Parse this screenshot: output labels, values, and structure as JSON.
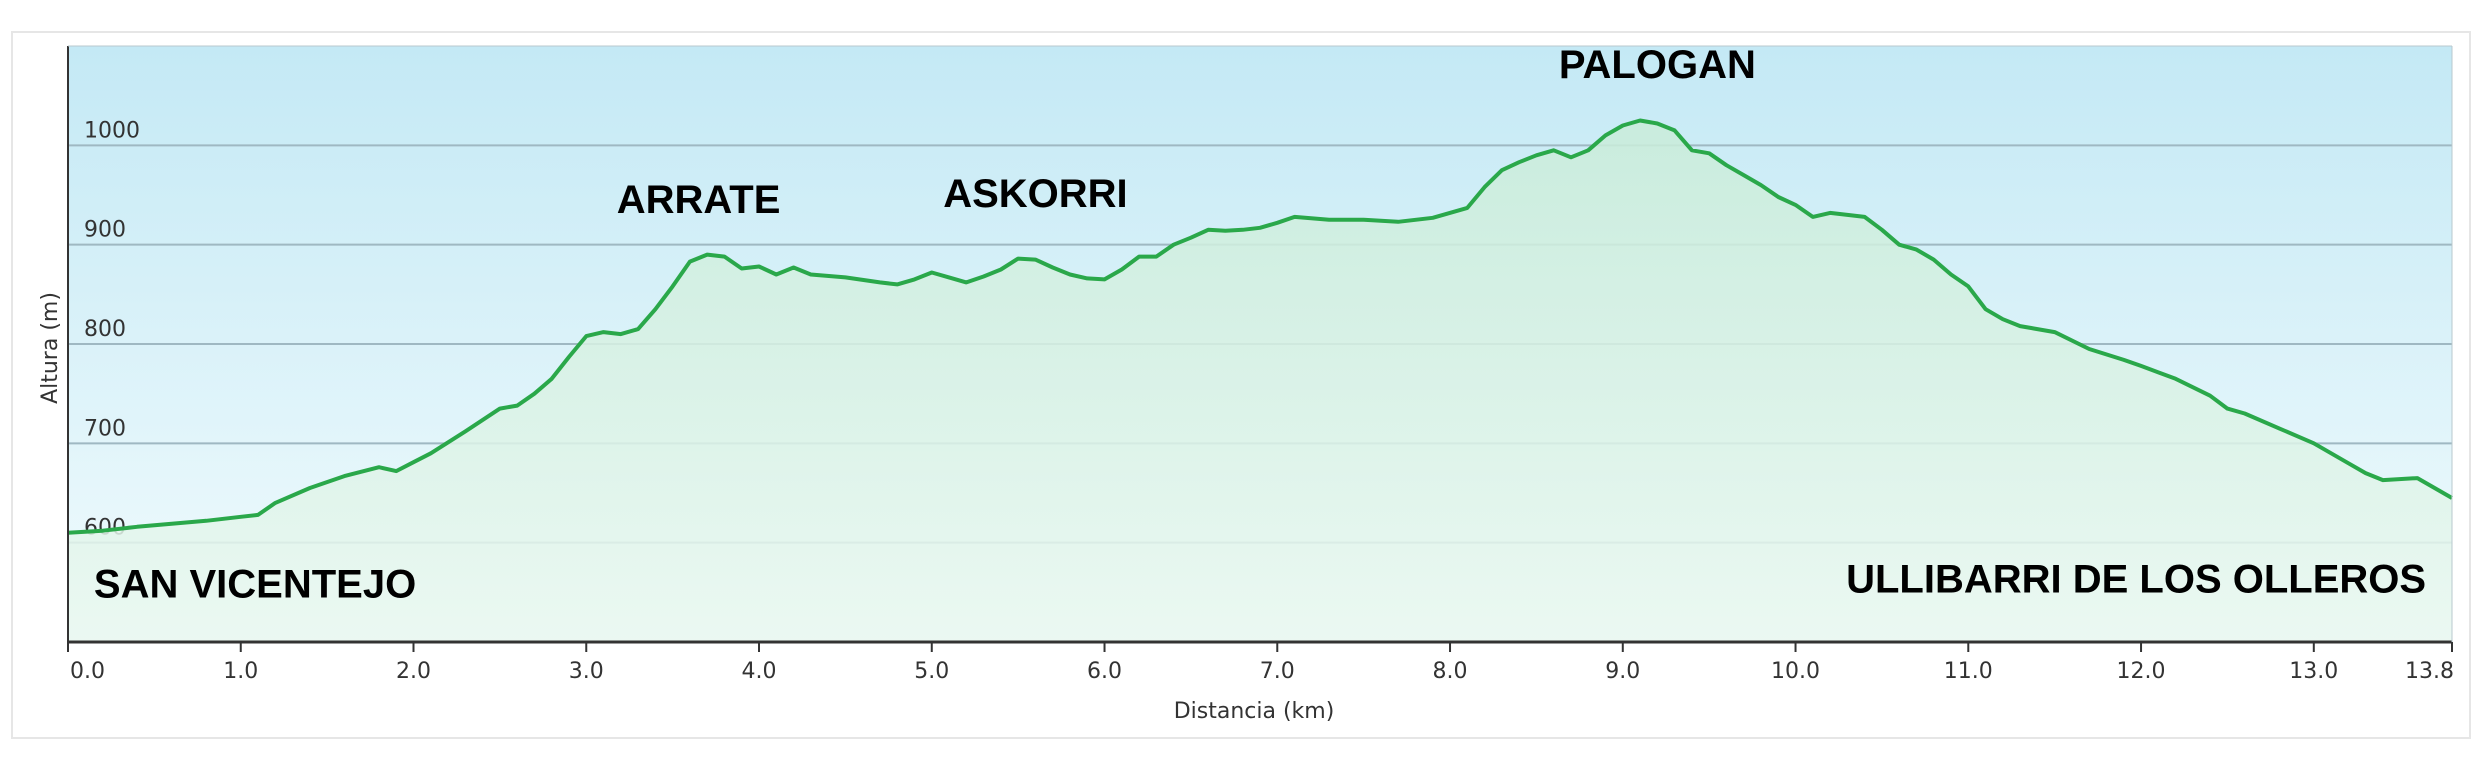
{
  "chart_data": {
    "type": "area",
    "xlabel": "Distancia  (km)",
    "ylabel": "Altura (m)",
    "xlim": [
      0,
      13.8
    ],
    "ylim": [
      500,
      1100
    ],
    "x_ticks": [
      0,
      1,
      2,
      3,
      4,
      5,
      6,
      7,
      8,
      9,
      10,
      11,
      12,
      13,
      13.8
    ],
    "x_tick_labels": [
      "0.0",
      "1.0",
      "2.0",
      "3.0",
      "4.0",
      "5.0",
      "6.0",
      "7.0",
      "8.0",
      "9.0",
      "10.0",
      "11.0",
      "12.0",
      "13.0",
      "13.8"
    ],
    "y_ticks": [
      600,
      700,
      800,
      900,
      1000
    ],
    "y_tick_labels": [
      "600",
      "700",
      "800",
      "900",
      "1000"
    ],
    "grid": true,
    "colors": {
      "line": "#2aa84a",
      "fill_top": "#c9ecd9",
      "fill_bottom": "#eaf8f0",
      "bg_top": "#c4e9f5",
      "bg_bottom": "#f1fbfd",
      "grid": "#9fb8c2",
      "axis": "#333333"
    },
    "series": [
      {
        "x": [
          0.0,
          0.2,
          0.4,
          0.6,
          0.8,
          1.0,
          1.1,
          1.2,
          1.4,
          1.6,
          1.8,
          1.9,
          2.0,
          2.1,
          2.3,
          2.5,
          2.6,
          2.7,
          2.8,
          2.9,
          3.0,
          3.1,
          3.2,
          3.3,
          3.4,
          3.5,
          3.6,
          3.7,
          3.8,
          3.9,
          4.0,
          4.1,
          4.2,
          4.3,
          4.5,
          4.7,
          4.8,
          4.9,
          5.0,
          5.1,
          5.2,
          5.3,
          5.4,
          5.5,
          5.6,
          5.7,
          5.8,
          5.9,
          6.0,
          6.1,
          6.2,
          6.3,
          6.4,
          6.5,
          6.6,
          6.7,
          6.8,
          6.9,
          7.0,
          7.1,
          7.3,
          7.5,
          7.7,
          7.9,
          8.1,
          8.2,
          8.3,
          8.4,
          8.5,
          8.6,
          8.7,
          8.8,
          8.9,
          9.0,
          9.1,
          9.2,
          9.3,
          9.4,
          9.5,
          9.6,
          9.7,
          9.8,
          9.9,
          10.0,
          10.1,
          10.2,
          10.3,
          10.4,
          10.5,
          10.6,
          10.7,
          10.8,
          10.9,
          11.0,
          11.1,
          11.2,
          11.3,
          11.5,
          11.7,
          11.9,
          12.0,
          12.2,
          12.4,
          12.5,
          12.6,
          12.8,
          13.0,
          13.2,
          13.3,
          13.4,
          13.6,
          13.8
        ],
        "y": [
          610,
          612,
          616,
          619,
          622,
          626,
          628,
          640,
          655,
          667,
          676,
          672,
          681,
          690,
          712,
          735,
          738,
          750,
          765,
          787,
          808,
          812,
          810,
          815,
          835,
          858,
          883,
          890,
          888,
          876,
          878,
          870,
          877,
          870,
          867,
          862,
          860,
          865,
          872,
          867,
          862,
          868,
          875,
          886,
          885,
          877,
          870,
          866,
          865,
          875,
          888,
          888,
          900,
          907,
          915,
          914,
          915,
          917,
          922,
          928,
          925,
          925,
          923,
          927,
          937,
          958,
          975,
          983,
          990,
          995,
          988,
          995,
          1010,
          1020,
          1025,
          1022,
          1015,
          995,
          992,
          980,
          970,
          960,
          948,
          940,
          928,
          932,
          930,
          928,
          915,
          900,
          895,
          885,
          870,
          858,
          835,
          825,
          818,
          812,
          795,
          784,
          778,
          765,
          748,
          735,
          730,
          715,
          700,
          680,
          670,
          663,
          665,
          645
        ]
      }
    ],
    "annotations": [
      {
        "text": "PALOGAN",
        "x": 9.2,
        "y": 1068
      },
      {
        "text": "ARRATE",
        "x": 3.65,
        "y": 932
      },
      {
        "text": "ASKORRI",
        "x": 5.6,
        "y": 938
      },
      {
        "text": "SAN VICENTEJO",
        "x": 0.15,
        "y": 545,
        "anchor": "start"
      },
      {
        "text": "ULLIBARRI DE LOS OLLEROS",
        "x": 13.65,
        "y": 550,
        "anchor": "end"
      }
    ]
  }
}
